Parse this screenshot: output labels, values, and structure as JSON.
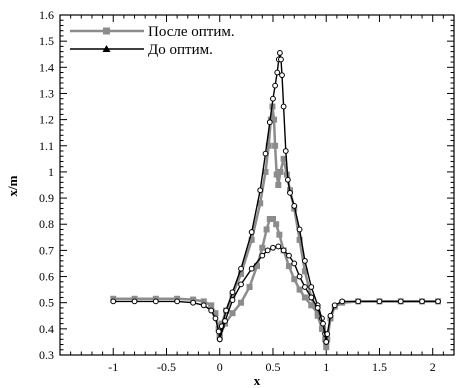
{
  "chart_data": {
    "type": "line",
    "title": "",
    "xlabel": "x",
    "ylabel": "x/m",
    "xlim": [
      -1.5,
      2.2
    ],
    "ylim": [
      0.3,
      1.6
    ],
    "x_ticks": [
      "-1",
      "-0.5",
      "0",
      "0.5",
      "1",
      "1.5",
      "2"
    ],
    "y_ticks": [
      "0.3",
      "0.4",
      "0.5",
      "0.6",
      "0.7",
      "0.8",
      "0.9",
      "1",
      "1.1",
      "1.2",
      "1.3",
      "1.4",
      "1.5",
      "1.6"
    ],
    "legend_position": "top-left",
    "series": [
      {
        "name": "После оптим.",
        "color": "#8c8c8c",
        "marker": "square",
        "upper": [
          [
            -1.0,
            0.515
          ],
          [
            -0.8,
            0.515
          ],
          [
            -0.6,
            0.515
          ],
          [
            -0.4,
            0.515
          ],
          [
            -0.25,
            0.512
          ],
          [
            -0.15,
            0.505
          ],
          [
            -0.08,
            0.49
          ],
          [
            -0.04,
            0.46
          ],
          [
            -0.01,
            0.4
          ],
          [
            0.0,
            0.37
          ],
          [
            0.02,
            0.42
          ],
          [
            0.06,
            0.47
          ],
          [
            0.12,
            0.53
          ],
          [
            0.2,
            0.61
          ],
          [
            0.3,
            0.74
          ],
          [
            0.38,
            0.88
          ],
          [
            0.43,
            1.0
          ],
          [
            0.46,
            1.1
          ],
          [
            0.48,
            1.2
          ],
          [
            0.495,
            1.25
          ],
          [
            0.51,
            1.2
          ],
          [
            0.52,
            1.1
          ],
          [
            0.535,
            0.99
          ],
          [
            0.55,
            0.95
          ],
          [
            0.57,
            1.0
          ],
          [
            0.6,
            1.05
          ],
          [
            0.63,
            0.99
          ],
          [
            0.66,
            0.93
          ],
          [
            0.7,
            0.86
          ],
          [
            0.75,
            0.74
          ],
          [
            0.8,
            0.62
          ],
          [
            0.86,
            0.52
          ],
          [
            0.92,
            0.45
          ],
          [
            0.96,
            0.4
          ],
          [
            0.99,
            0.36
          ],
          [
            1.0,
            0.33
          ],
          [
            1.01,
            0.36
          ],
          [
            1.04,
            0.44
          ],
          [
            1.08,
            0.485
          ],
          [
            1.15,
            0.5
          ],
          [
            1.3,
            0.505
          ],
          [
            1.5,
            0.505
          ],
          [
            1.7,
            0.505
          ],
          [
            1.9,
            0.505
          ],
          [
            2.05,
            0.505
          ]
        ],
        "lower": [
          [
            0.0,
            0.37
          ],
          [
            0.05,
            0.42
          ],
          [
            0.12,
            0.46
          ],
          [
            0.2,
            0.5
          ],
          [
            0.28,
            0.56
          ],
          [
            0.35,
            0.64
          ],
          [
            0.4,
            0.71
          ],
          [
            0.44,
            0.78
          ],
          [
            0.47,
            0.82
          ],
          [
            0.5,
            0.82
          ],
          [
            0.53,
            0.8
          ],
          [
            0.56,
            0.76
          ],
          [
            0.6,
            0.7
          ],
          [
            0.65,
            0.64
          ],
          [
            0.7,
            0.59
          ],
          [
            0.75,
            0.55
          ],
          [
            0.8,
            0.52
          ],
          [
            0.86,
            0.49
          ],
          [
            0.92,
            0.46
          ],
          [
            0.97,
            0.4
          ],
          [
            1.0,
            0.35
          ]
        ]
      },
      {
        "name": "До оптим.",
        "color": "#000000",
        "marker": "triangle",
        "upper": [
          [
            -1.0,
            0.505
          ],
          [
            -0.8,
            0.505
          ],
          [
            -0.6,
            0.505
          ],
          [
            -0.4,
            0.505
          ],
          [
            -0.25,
            0.5
          ],
          [
            -0.15,
            0.49
          ],
          [
            -0.08,
            0.47
          ],
          [
            -0.04,
            0.44
          ],
          [
            -0.01,
            0.39
          ],
          [
            0.0,
            0.36
          ],
          [
            0.02,
            0.41
          ],
          [
            0.06,
            0.47
          ],
          [
            0.12,
            0.54
          ],
          [
            0.2,
            0.63
          ],
          [
            0.3,
            0.77
          ],
          [
            0.38,
            0.93
          ],
          [
            0.43,
            1.07
          ],
          [
            0.47,
            1.19
          ],
          [
            0.5,
            1.28
          ],
          [
            0.52,
            1.33
          ],
          [
            0.54,
            1.38
          ],
          [
            0.555,
            1.43
          ],
          [
            0.565,
            1.455
          ],
          [
            0.575,
            1.43
          ],
          [
            0.585,
            1.37
          ],
          [
            0.6,
            1.25
          ],
          [
            0.62,
            1.08
          ],
          [
            0.64,
            0.97
          ],
          [
            0.66,
            0.92
          ],
          [
            0.7,
            0.87
          ],
          [
            0.75,
            0.78
          ],
          [
            0.8,
            0.66
          ],
          [
            0.86,
            0.56
          ],
          [
            0.92,
            0.49
          ],
          [
            0.96,
            0.44
          ],
          [
            0.99,
            0.38
          ],
          [
            1.0,
            0.35
          ],
          [
            1.01,
            0.38
          ],
          [
            1.04,
            0.45
          ],
          [
            1.08,
            0.49
          ],
          [
            1.15,
            0.505
          ],
          [
            1.3,
            0.505
          ],
          [
            1.5,
            0.505
          ],
          [
            1.7,
            0.505
          ],
          [
            1.9,
            0.505
          ],
          [
            2.05,
            0.505
          ]
        ],
        "lower": [
          [
            0.0,
            0.36
          ],
          [
            0.05,
            0.43
          ],
          [
            0.12,
            0.51
          ],
          [
            0.2,
            0.57
          ],
          [
            0.3,
            0.63
          ],
          [
            0.4,
            0.68
          ],
          [
            0.45,
            0.7
          ],
          [
            0.5,
            0.71
          ],
          [
            0.55,
            0.715
          ],
          [
            0.6,
            0.7
          ],
          [
            0.65,
            0.68
          ],
          [
            0.7,
            0.65
          ],
          [
            0.75,
            0.6
          ],
          [
            0.8,
            0.56
          ],
          [
            0.86,
            0.52
          ],
          [
            0.92,
            0.48
          ],
          [
            0.97,
            0.42
          ],
          [
            1.0,
            0.35
          ]
        ]
      }
    ]
  }
}
